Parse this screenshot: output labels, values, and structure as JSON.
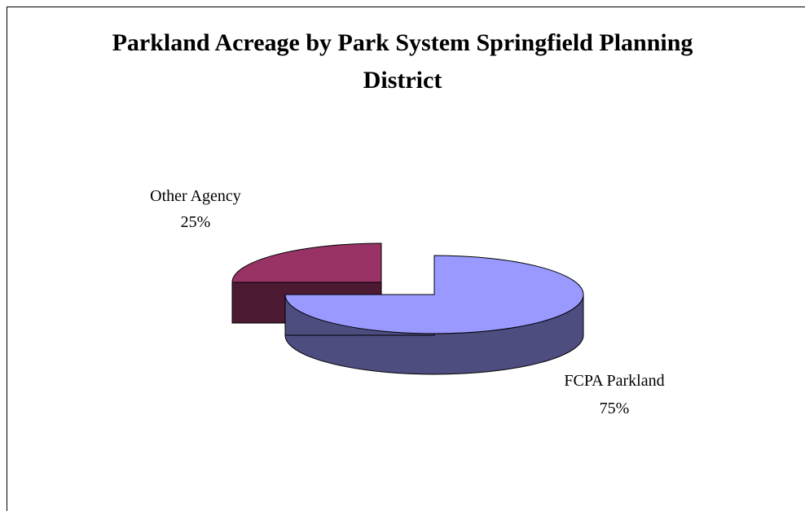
{
  "chart_data": {
    "type": "pie",
    "title": "Parkland Acreage by Park System Springfield Planning District",
    "slices": [
      {
        "label": "FCPA  Parkland",
        "value": 75,
        "value_label": "75%",
        "color": "#9999ff",
        "side_color": "#4d4d80"
      },
      {
        "label": "Other Agency",
        "value": 25,
        "value_label": "25%",
        "color": "#993366",
        "side_color": "#4d1a33"
      }
    ],
    "legend": "none",
    "style": "3d-exploded"
  }
}
